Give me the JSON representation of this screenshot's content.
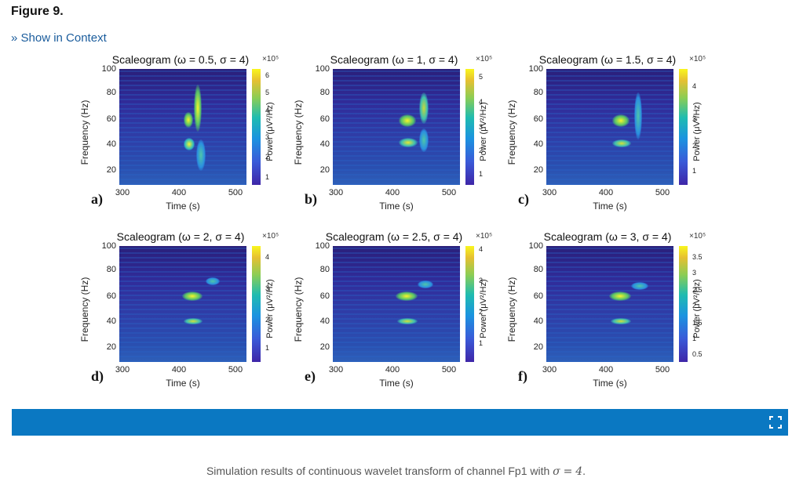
{
  "figure_label": "Figure 9.",
  "context_link": "» Show in Context",
  "caption": {
    "text": "Simulation results of continuous wavelet transform of channel Fp1 with",
    "math_symbol": "σ",
    "math_op": "=",
    "math_value": "4",
    "end": "."
  },
  "axis": {
    "y_label": "Frequency (Hz)",
    "x_label": "Time (s)",
    "y_ticks": [
      "100",
      "80",
      "60",
      "40",
      "20"
    ],
    "x_ticks": [
      "300",
      "400",
      "500"
    ],
    "colorbar_label": "Power (μV²/Hz)",
    "colorbar_multiplier": "×10⁵"
  },
  "panels": [
    {
      "letter": "a)",
      "title": "Scaleogram (ω = 0.5, σ = 4)",
      "cbar_ticks": [
        "6",
        "5",
        "4",
        "3",
        "2",
        "1"
      ]
    },
    {
      "letter": "b)",
      "title": "Scaleogram (ω = 1, σ = 4)",
      "cbar_ticks": [
        "5",
        "4",
        "3",
        "2",
        "1"
      ]
    },
    {
      "letter": "c)",
      "title": "Scaleogram (ω = 1.5, σ = 4)",
      "cbar_ticks": [
        "4",
        "3",
        "2",
        "1"
      ]
    },
    {
      "letter": "d)",
      "title": "Scaleogram (ω = 2, σ = 4)",
      "cbar_ticks": [
        "4",
        "3",
        "2",
        "1"
      ]
    },
    {
      "letter": "e)",
      "title": "Scaleogram (ω = 2.5, σ = 4)",
      "cbar_ticks": [
        "4",
        "3",
        "2",
        "1"
      ]
    },
    {
      "letter": "f)",
      "title": "Scaleogram (ω = 3, σ = 4)",
      "cbar_ticks": [
        "3.5",
        "3",
        "2.5",
        "2",
        "1.5",
        "1",
        "0.5"
      ]
    }
  ],
  "chart_data": [
    {
      "type": "heatmap",
      "title": "Scaleogram (ω = 0.5, σ = 4)",
      "xlabel": "Time (s)",
      "ylabel": "Frequency (Hz)",
      "x_ticks": [
        300,
        400,
        500
      ],
      "y_ticks": [
        20,
        40,
        60,
        80,
        100
      ],
      "colorbar": "Power (μV²/Hz) ×10⁵",
      "colorbar_ticks": [
        1,
        2,
        3,
        4,
        5,
        6
      ]
    },
    {
      "type": "heatmap",
      "title": "Scaleogram (ω = 1, σ = 4)",
      "xlabel": "Time (s)",
      "ylabel": "Frequency (Hz)",
      "x_ticks": [
        300,
        400,
        500
      ],
      "y_ticks": [
        20,
        40,
        60,
        80,
        100
      ],
      "colorbar": "Power (μV²/Hz) ×10⁵",
      "colorbar_ticks": [
        1,
        2,
        3,
        4,
        5
      ]
    },
    {
      "type": "heatmap",
      "title": "Scaleogram (ω = 1.5, σ = 4)",
      "xlabel": "Time (s)",
      "ylabel": "Frequency (Hz)",
      "x_ticks": [
        300,
        400,
        500
      ],
      "y_ticks": [
        20,
        40,
        60,
        80,
        100
      ],
      "colorbar": "Power (μV²/Hz) ×10⁵",
      "colorbar_ticks": [
        1,
        2,
        3,
        4
      ]
    },
    {
      "type": "heatmap",
      "title": "Scaleogram (ω = 2, σ = 4)",
      "xlabel": "Time (s)",
      "ylabel": "Frequency (Hz)",
      "x_ticks": [
        300,
        400,
        500
      ],
      "y_ticks": [
        20,
        40,
        60,
        80,
        100
      ],
      "colorbar": "Power (μV²/Hz) ×10⁵",
      "colorbar_ticks": [
        1,
        2,
        3,
        4
      ]
    },
    {
      "type": "heatmap",
      "title": "Scaleogram (ω = 2.5, σ = 4)",
      "xlabel": "Time (s)",
      "ylabel": "Frequency (Hz)",
      "x_ticks": [
        300,
        400,
        500
      ],
      "y_ticks": [
        20,
        40,
        60,
        80,
        100
      ],
      "colorbar": "Power (μV²/Hz) ×10⁵",
      "colorbar_ticks": [
        1,
        2,
        3,
        4
      ]
    },
    {
      "type": "heatmap",
      "title": "Scaleogram (ω = 3, σ = 4)",
      "xlabel": "Time (s)",
      "ylabel": "Frequency (Hz)",
      "x_ticks": [
        300,
        400,
        500
      ],
      "y_ticks": [
        20,
        40,
        60,
        80,
        100
      ],
      "colorbar": "Power (μV²/Hz) ×10⁵",
      "colorbar_ticks": [
        0.5,
        1,
        1.5,
        2,
        2.5,
        3,
        3.5
      ]
    }
  ]
}
